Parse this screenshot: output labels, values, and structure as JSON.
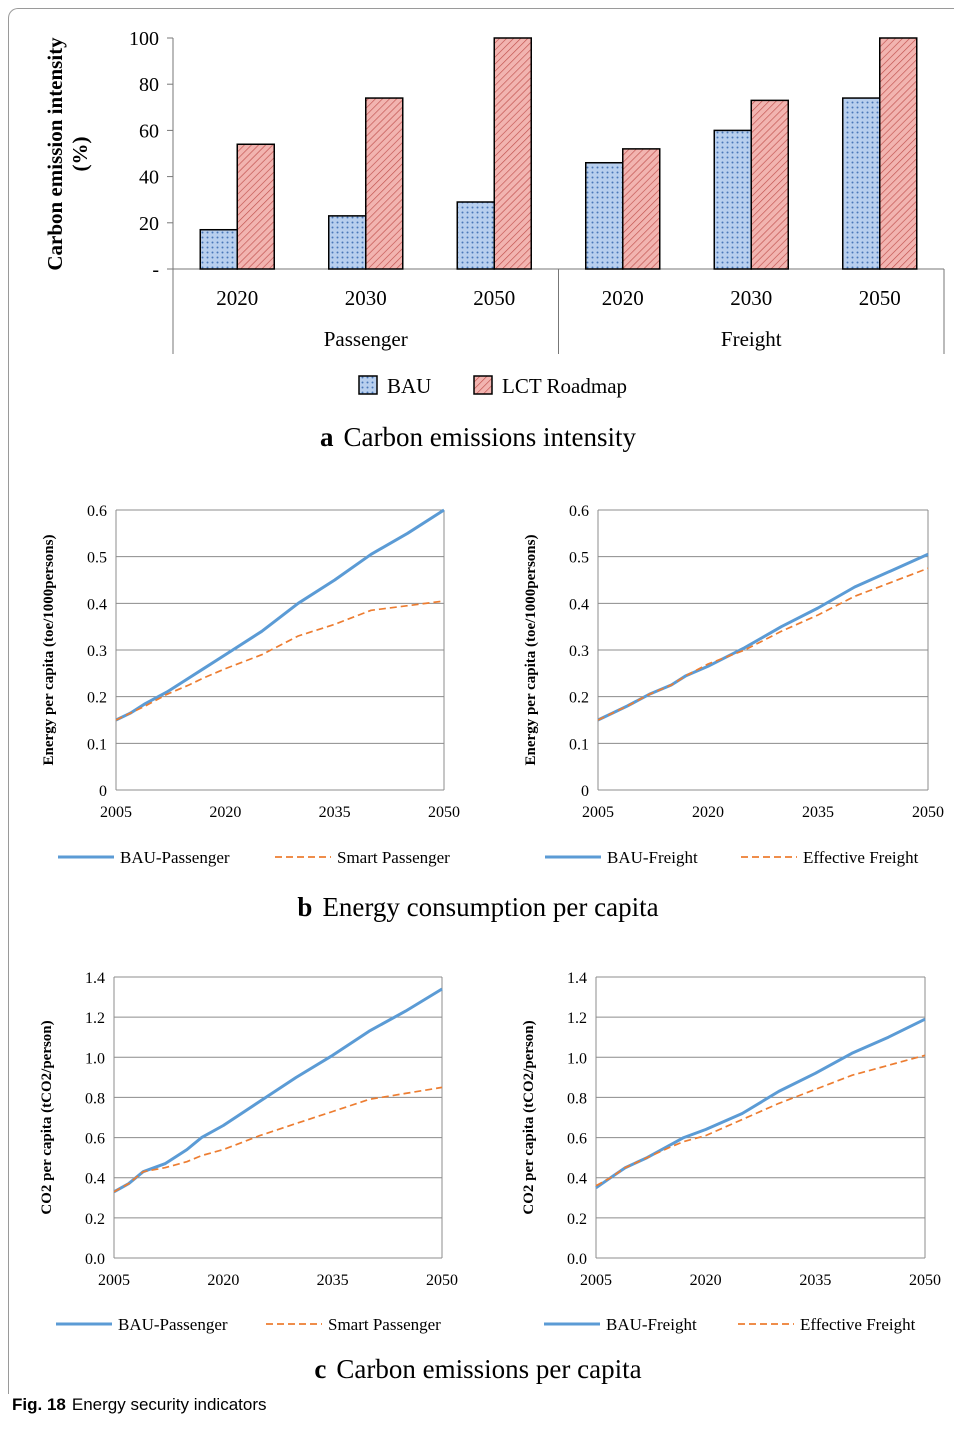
{
  "figure": {
    "label": "Fig. 18",
    "caption": "Energy security indicators",
    "panel_a": {
      "letter": "a",
      "caption": "Carbon emissions intensity"
    },
    "panel_b": {
      "letter": "b",
      "caption": "Energy consumption per capita"
    },
    "panel_c": {
      "letter": "c",
      "caption": "Carbon emissions per capita"
    }
  },
  "colors": {
    "bau": "#5b9bd5",
    "alt": "#ed7d31",
    "bau_fill": "#b8cfee",
    "lct_fill": "#f2b4b0"
  },
  "chart_data": [
    {
      "id": "a",
      "type": "bar",
      "title": "",
      "ylabel": "Carbon emission intensity (%)",
      "ylim": [
        0,
        100
      ],
      "yticks": [
        "-",
        "20",
        "40",
        "60",
        "80",
        "100"
      ],
      "groups": [
        "Passenger",
        "Freight"
      ],
      "categories": [
        "2020",
        "2030",
        "2050",
        "2020",
        "2030",
        "2050"
      ],
      "series": [
        {
          "name": "BAU",
          "values": [
            17,
            23,
            29,
            46,
            60,
            74
          ]
        },
        {
          "name": "LCT Roadmap",
          "values": [
            54,
            74,
            100,
            52,
            73,
            100
          ]
        }
      ],
      "legend": "bottom",
      "grid": false
    },
    {
      "id": "b1",
      "type": "line",
      "ylabel": "Energy per capita (toe/1000persons)",
      "xticks": [
        "2005",
        "2020",
        "2035",
        "2050"
      ],
      "yticks": [
        "0",
        "0.1",
        "0.2",
        "0.3",
        "0.4",
        "0.5",
        "0.6"
      ],
      "xlim": [
        2005,
        2050
      ],
      "ylim": [
        0,
        0.6
      ],
      "x": [
        2005,
        2007,
        2009,
        2012,
        2015,
        2017,
        2020,
        2025,
        2030,
        2035,
        2040,
        2045,
        2050
      ],
      "series": [
        {
          "name": "BAU-Passenger",
          "style": "solid",
          "values": [
            0.15,
            0.165,
            0.185,
            0.21,
            0.24,
            0.26,
            0.29,
            0.34,
            0.4,
            0.45,
            0.505,
            0.55,
            0.6
          ]
        },
        {
          "name": "Smart Passenger",
          "style": "dashed",
          "values": [
            0.15,
            0.165,
            0.18,
            0.205,
            0.225,
            0.24,
            0.26,
            0.29,
            0.33,
            0.355,
            0.385,
            0.395,
            0.405
          ]
        }
      ],
      "legend": "bottom",
      "grid": true
    },
    {
      "id": "b2",
      "type": "line",
      "ylabel": "Energy per capita (toe/1000persons)",
      "xticks": [
        "2005",
        "2020",
        "2035",
        "2050"
      ],
      "yticks": [
        "0",
        "0.1",
        "0.2",
        "0.3",
        "0.4",
        "0.5",
        "0.6"
      ],
      "xlim": [
        2005,
        2050
      ],
      "ylim": [
        0,
        0.6
      ],
      "x": [
        2005,
        2007,
        2009,
        2012,
        2015,
        2017,
        2020,
        2025,
        2030,
        2035,
        2040,
        2045,
        2050
      ],
      "series": [
        {
          "name": "BAU-Freight",
          "style": "solid",
          "values": [
            0.15,
            0.165,
            0.18,
            0.205,
            0.225,
            0.245,
            0.265,
            0.305,
            0.35,
            0.39,
            0.435,
            0.47,
            0.505
          ]
        },
        {
          "name": "Effective Freight",
          "style": "dashed",
          "values": [
            0.15,
            0.165,
            0.18,
            0.205,
            0.225,
            0.245,
            0.27,
            0.3,
            0.34,
            0.375,
            0.415,
            0.445,
            0.475
          ]
        }
      ],
      "legend": "bottom",
      "grid": true
    },
    {
      "id": "c1",
      "type": "line",
      "ylabel": "CO2 per capita (tCO2/person)",
      "xticks": [
        "2005",
        "2020",
        "2035",
        "2050"
      ],
      "yticks": [
        "0.0",
        "0.2",
        "0.4",
        "0.6",
        "0.8",
        "1.0",
        "1.2",
        "1.4"
      ],
      "xlim": [
        2005,
        2050
      ],
      "ylim": [
        0,
        1.4
      ],
      "x": [
        2005,
        2007,
        2009,
        2012,
        2015,
        2017,
        2020,
        2025,
        2030,
        2035,
        2040,
        2045,
        2050
      ],
      "series": [
        {
          "name": "BAU-Passenger",
          "style": "solid",
          "values": [
            0.33,
            0.37,
            0.43,
            0.47,
            0.54,
            0.6,
            0.66,
            0.78,
            0.9,
            1.01,
            1.13,
            1.23,
            1.34
          ]
        },
        {
          "name": "Smart Passenger",
          "style": "dashed",
          "values": [
            0.33,
            0.37,
            0.43,
            0.45,
            0.48,
            0.51,
            0.54,
            0.61,
            0.67,
            0.73,
            0.79,
            0.82,
            0.85
          ]
        }
      ],
      "legend": "bottom",
      "grid": true
    },
    {
      "id": "c2",
      "type": "line",
      "ylabel": "CO2 per capita (tCO2/person)",
      "xticks": [
        "2005",
        "2020",
        "2035",
        "2050"
      ],
      "yticks": [
        "0.0",
        "0.2",
        "0.4",
        "0.6",
        "0.8",
        "1.0",
        "1.2",
        "1.4"
      ],
      "xlim": [
        2005,
        2050
      ],
      "ylim": [
        0,
        1.4
      ],
      "x": [
        2005,
        2007,
        2009,
        2012,
        2015,
        2017,
        2020,
        2025,
        2030,
        2035,
        2040,
        2045,
        2050
      ],
      "series": [
        {
          "name": "BAU-Freight",
          "style": "solid",
          "values": [
            0.35,
            0.4,
            0.45,
            0.5,
            0.56,
            0.6,
            0.64,
            0.72,
            0.83,
            0.92,
            1.02,
            1.1,
            1.19
          ]
        },
        {
          "name": "Effective Freight",
          "style": "dashed",
          "values": [
            0.36,
            0.4,
            0.45,
            0.5,
            0.55,
            0.58,
            0.61,
            0.69,
            0.77,
            0.84,
            0.91,
            0.96,
            1.01
          ]
        }
      ],
      "legend": "bottom",
      "grid": true
    }
  ]
}
